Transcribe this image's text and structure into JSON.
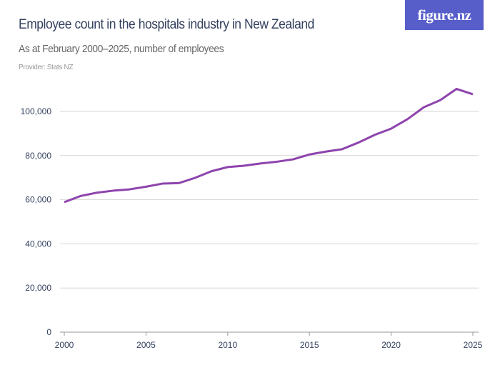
{
  "header": {
    "title": "Employee count in the hospitals industry in New Zealand",
    "subtitle": "As at February 2000–2025, number of employees",
    "provider": "Provider: Stats NZ",
    "logo": "figure.nz",
    "logo_color": "#575dc9"
  },
  "chart_data": {
    "type": "line",
    "title": "Employee count in the hospitals industry in New Zealand",
    "subtitle": "As at February 2000–2025, number of employees",
    "xlabel": "",
    "ylabel": "",
    "x": [
      2000,
      2001,
      2002,
      2003,
      2004,
      2005,
      2006,
      2007,
      2008,
      2009,
      2010,
      2011,
      2012,
      2013,
      2014,
      2015,
      2016,
      2017,
      2018,
      2019,
      2020,
      2021,
      2022,
      2023,
      2024,
      2025
    ],
    "series": [
      {
        "values": [
          58900,
          61700,
          63200,
          64100,
          64700,
          65900,
          67300,
          67500,
          69900,
          72900,
          74800,
          75400,
          76400,
          77200,
          78300,
          80500,
          81800,
          82900,
          85900,
          89400,
          92200,
          96500,
          101900,
          105100,
          110200,
          107800
        ],
        "color": "#8e44ad"
      }
    ],
    "xlim": [
      2000,
      2025
    ],
    "ylim": [
      0,
      100000
    ],
    "x_ticks": [
      "2000",
      "2005",
      "2010",
      "2015",
      "2020",
      "2025"
    ],
    "y_ticks": [
      "0",
      "20,000",
      "40,000",
      "60,000",
      "80,000",
      "100,000"
    ],
    "grid": true,
    "legend": "none"
  }
}
